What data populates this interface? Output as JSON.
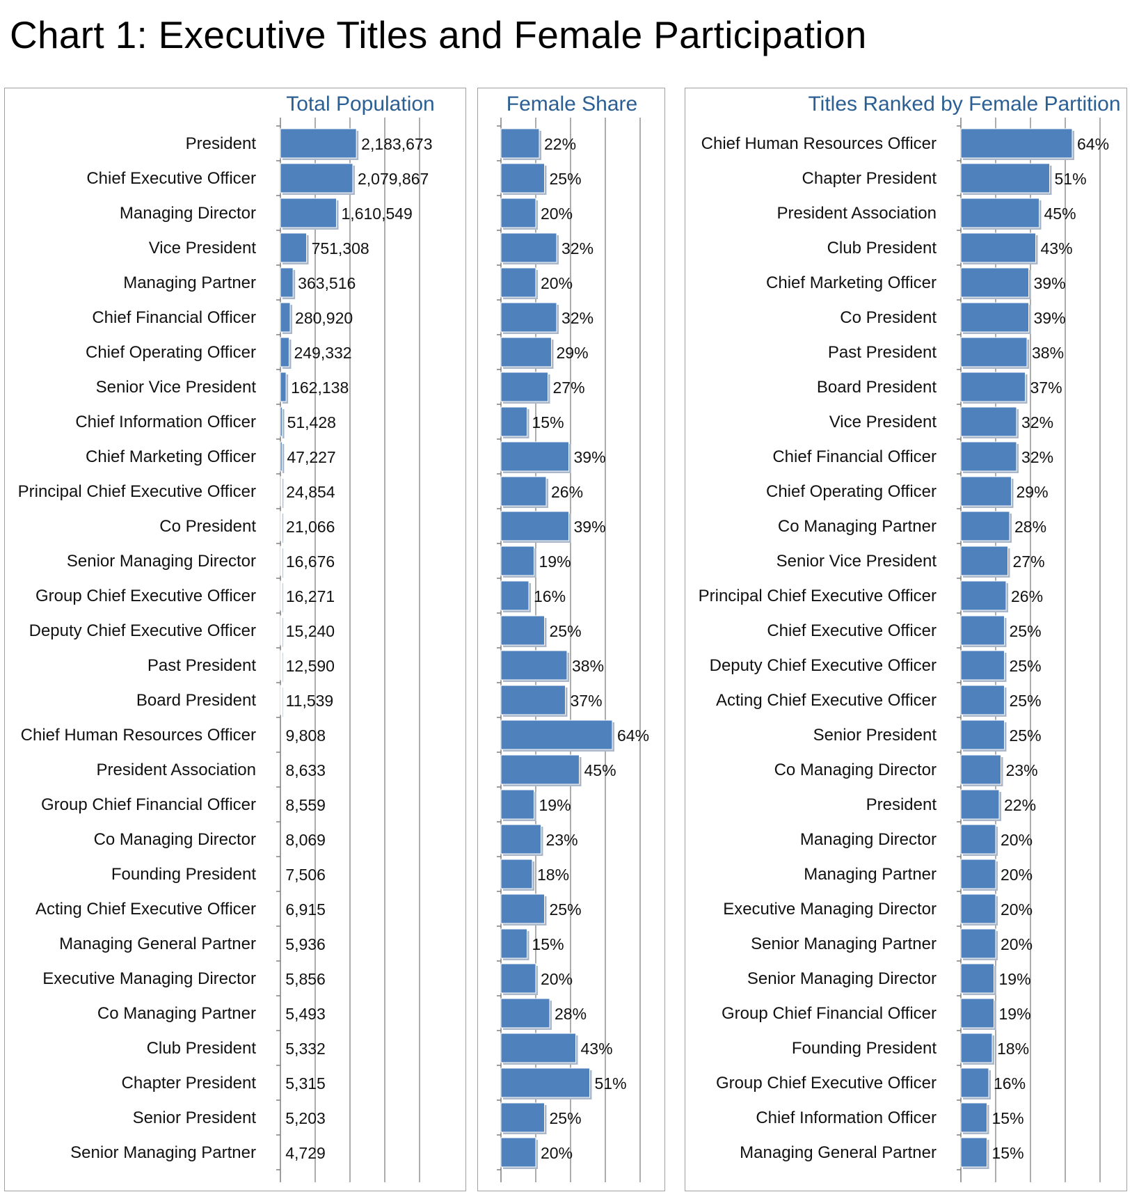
{
  "title": "Chart 1: Executive Titles and Female Participation",
  "chart_data": [
    {
      "type": "bar",
      "orientation": "horizontal",
      "title": "Total Population",
      "xlim": [
        0,
        4000000
      ],
      "grid": true,
      "categories": [
        "President",
        "Chief Executive Officer",
        "Managing Director",
        "Vice President",
        "Managing Partner",
        "Chief Financial Officer",
        "Chief Operating Officer",
        "Senior Vice President",
        "Chief Information Officer",
        "Chief Marketing Officer",
        "Principal Chief Executive Officer",
        "Co President",
        "Senior Managing Director",
        "Group Chief Executive Officer",
        "Deputy Chief Executive Officer",
        "Past President",
        "Board President",
        "Chief Human Resources Officer",
        "President Association",
        "Group Chief Financial Officer",
        "Co Managing Director",
        "Founding President",
        "Acting Chief Executive Officer",
        "Managing General Partner",
        "Executive Managing Director",
        "Co Managing Partner",
        "Club President",
        "Chapter President",
        "Senior President",
        "Senior Managing Partner"
      ],
      "values": [
        2183673,
        2079867,
        1610549,
        751308,
        363516,
        280920,
        249332,
        162138,
        51428,
        47227,
        24854,
        21066,
        16676,
        16271,
        15240,
        12590,
        11539,
        9808,
        8633,
        8559,
        8069,
        7506,
        6915,
        5936,
        5856,
        5493,
        5332,
        5315,
        5203,
        4729
      ],
      "labels": [
        "2,183,673",
        "2,079,867",
        "1,610,549",
        "751,308",
        "363,516",
        "280,920",
        "249,332",
        "162,138",
        "51,428",
        "47,227",
        "24,854",
        "21,066",
        "16,676",
        "16,271",
        "15,240",
        "12,590",
        "11,539",
        "9,808",
        "8,633",
        "8,559",
        "8,069",
        "7,506",
        "6,915",
        "5,936",
        "5,856",
        "5,493",
        "5,332",
        "5,315",
        "5,203",
        "4,729"
      ]
    },
    {
      "type": "bar",
      "orientation": "horizontal",
      "title": "Female Share",
      "xlim": [
        0,
        0.8
      ],
      "grid": true,
      "values": [
        0.22,
        0.25,
        0.2,
        0.32,
        0.2,
        0.32,
        0.29,
        0.27,
        0.15,
        0.39,
        0.26,
        0.39,
        0.19,
        0.16,
        0.25,
        0.38,
        0.37,
        0.64,
        0.45,
        0.19,
        0.23,
        0.18,
        0.25,
        0.15,
        0.2,
        0.28,
        0.43,
        0.51,
        0.25,
        0.2
      ],
      "labels": [
        "22%",
        "25%",
        "20%",
        "32%",
        "20%",
        "32%",
        "29%",
        "27%",
        "15%",
        "39%",
        "26%",
        "39%",
        "19%",
        "16%",
        "25%",
        "38%",
        "37%",
        "64%",
        "45%",
        "19%",
        "23%",
        "18%",
        "25%",
        "15%",
        "20%",
        "28%",
        "43%",
        "51%",
        "25%",
        "20%"
      ]
    },
    {
      "type": "bar",
      "orientation": "horizontal",
      "title": "Titles Ranked by Female Partition",
      "xlim": [
        0,
        0.8
      ],
      "grid": true,
      "categories": [
        "Chief Human Resources Officer",
        "Chapter President",
        "President Association",
        "Club President",
        "Chief Marketing Officer",
        "Co President",
        "Past President",
        "Board President",
        "Vice President",
        "Chief Financial Officer",
        "Chief Operating Officer",
        "Co Managing Partner",
        "Senior Vice President",
        "Principal Chief Executive Officer",
        "Chief Executive Officer",
        "Deputy Chief Executive Officer",
        "Acting Chief Executive Officer",
        "Senior President",
        "Co Managing Director",
        "President",
        "Managing Director",
        "Managing Partner",
        "Executive Managing Director",
        "Senior Managing Partner",
        "Senior Managing Director",
        "Group Chief Financial Officer",
        "Founding President",
        "Group Chief Executive Officer",
        "Chief Information Officer",
        "Managing General Partner"
      ],
      "values": [
        0.64,
        0.51,
        0.45,
        0.43,
        0.39,
        0.39,
        0.38,
        0.37,
        0.32,
        0.32,
        0.29,
        0.28,
        0.27,
        0.26,
        0.25,
        0.25,
        0.25,
        0.25,
        0.23,
        0.22,
        0.2,
        0.2,
        0.2,
        0.2,
        0.19,
        0.19,
        0.18,
        0.16,
        0.15,
        0.15
      ],
      "labels": [
        "64%",
        "51%",
        "45%",
        "43%",
        "39%",
        "39%",
        "38%",
        "37%",
        "32%",
        "32%",
        "29%",
        "28%",
        "27%",
        "26%",
        "25%",
        "25%",
        "25%",
        "25%",
        "23%",
        "22%",
        "20%",
        "20%",
        "20%",
        "20%",
        "19%",
        "19%",
        "18%",
        "16%",
        "15%",
        "15%"
      ]
    }
  ]
}
